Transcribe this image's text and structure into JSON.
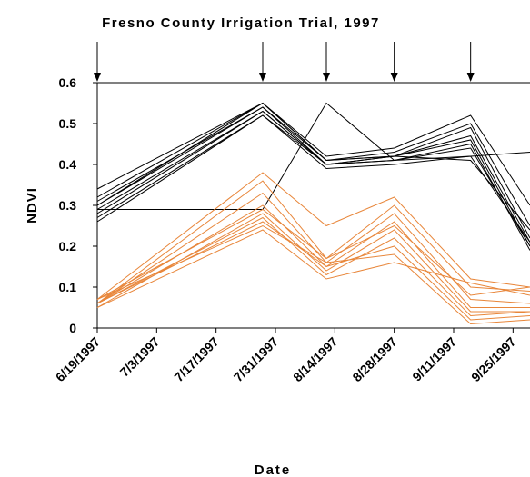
{
  "chart_data": {
    "type": "line",
    "title": "Fresno County Irrigation Trial, 1997",
    "x_label": "Date",
    "y_label": "NDVI",
    "x": [
      "1997-06-19",
      "1997-07-28",
      "1997-08-12",
      "1997-08-28",
      "1997-09-15",
      "1997-09-29"
    ],
    "xlim": [
      "1997-06-19",
      "1997-09-29"
    ],
    "xticks": [
      {
        "value": "1997-06-19",
        "label": "6/19/1997"
      },
      {
        "value": "1997-07-03",
        "label": "7/3/1997"
      },
      {
        "value": "1997-07-17",
        "label": "7/17/1997"
      },
      {
        "value": "1997-07-31",
        "label": "7/31/1997"
      },
      {
        "value": "1997-08-14",
        "label": "8/14/1997"
      },
      {
        "value": "1997-08-28",
        "label": "8/28/1997"
      },
      {
        "value": "1997-09-11",
        "label": "9/11/1997"
      },
      {
        "value": "1997-09-25",
        "label": "9/25/1997"
      }
    ],
    "ylim": [
      0,
      0.6
    ],
    "yticks": [
      0,
      0.1,
      0.2,
      0.3,
      0.4,
      0.5,
      0.6
    ],
    "series": [
      {
        "color": "#000000",
        "values": [
          0.34,
          0.55,
          0.42,
          0.44,
          0.52,
          0.3
        ]
      },
      {
        "color": "#000000",
        "values": [
          0.32,
          0.55,
          0.41,
          0.43,
          0.5,
          0.25
        ]
      },
      {
        "color": "#000000",
        "values": [
          0.31,
          0.54,
          0.41,
          0.42,
          0.49,
          0.22
        ]
      },
      {
        "color": "#000000",
        "values": [
          0.3,
          0.54,
          0.4,
          0.42,
          0.47,
          0.21
        ]
      },
      {
        "color": "#000000",
        "values": [
          0.29,
          0.53,
          0.4,
          0.42,
          0.46,
          0.2
        ]
      },
      {
        "color": "#000000",
        "values": [
          0.28,
          0.53,
          0.4,
          0.41,
          0.45,
          0.19
        ]
      },
      {
        "color": "#000000",
        "values": [
          0.27,
          0.52,
          0.4,
          0.41,
          0.44,
          0.2
        ]
      },
      {
        "color": "#000000",
        "values": [
          0.26,
          0.52,
          0.39,
          0.4,
          0.42,
          0.21
        ]
      },
      {
        "color": "#000000",
        "values": [
          0.3,
          0.55,
          0.41,
          0.42,
          0.41,
          0.24
        ]
      },
      {
        "color": "#000000",
        "values": [
          0.29,
          0.29,
          0.55,
          0.41,
          0.42,
          0.43
        ]
      },
      {
        "color": "#e8863a",
        "values": [
          0.07,
          0.38,
          0.25,
          0.32,
          0.12,
          0.1
        ]
      },
      {
        "color": "#e8863a",
        "values": [
          0.06,
          0.36,
          0.17,
          0.3,
          0.1,
          0.09
        ]
      },
      {
        "color": "#e8863a",
        "values": [
          0.06,
          0.33,
          0.16,
          0.28,
          0.07,
          0.06
        ]
      },
      {
        "color": "#e8863a",
        "values": [
          0.06,
          0.3,
          0.15,
          0.26,
          0.05,
          0.05
        ]
      },
      {
        "color": "#e8863a",
        "values": [
          0.07,
          0.29,
          0.17,
          0.25,
          0.08,
          0.1
        ]
      },
      {
        "color": "#e8863a",
        "values": [
          0.05,
          0.28,
          0.14,
          0.24,
          0.04,
          0.04
        ]
      },
      {
        "color": "#e8863a",
        "values": [
          0.06,
          0.27,
          0.13,
          0.22,
          0.03,
          0.04
        ]
      },
      {
        "color": "#e8863a",
        "values": [
          0.06,
          0.26,
          0.15,
          0.2,
          0.02,
          0.03
        ]
      },
      {
        "color": "#e8863a",
        "values": [
          0.07,
          0.25,
          0.16,
          0.18,
          0.01,
          0.02
        ]
      },
      {
        "color": "#e8863a",
        "values": [
          0.05,
          0.24,
          0.12,
          0.16,
          0.11,
          0.08
        ]
      }
    ]
  }
}
